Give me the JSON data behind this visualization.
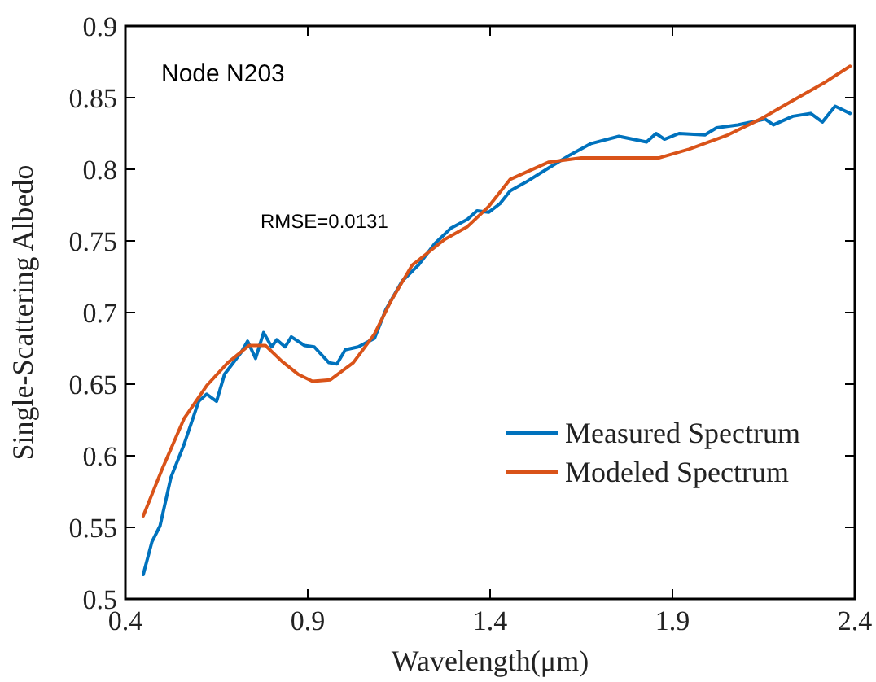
{
  "chart_data": {
    "type": "line",
    "xlabel": "Wavelength(μm)",
    "ylabel": "Single-Scattering Albedo",
    "annotations": [
      "Node N203",
      "RMSE=0.0131"
    ],
    "xlim": [
      0.4,
      2.4
    ],
    "xticks": [
      0.4,
      0.9,
      1.4,
      1.9,
      2.4
    ],
    "ylim": [
      0.5,
      0.9
    ],
    "yticks": [
      0.5,
      0.55,
      0.6,
      0.65,
      0.7,
      0.75,
      0.8,
      0.85,
      0.9
    ],
    "grid": false,
    "legend": "bottom right",
    "marker": "none",
    "line_style": "solid",
    "series": [
      {
        "name": "Measured Spectrum",
        "color": "#0072bd",
        "x": [
          0.449,
          0.473,
          0.495,
          0.525,
          0.561,
          0.601,
          0.623,
          0.65,
          0.672,
          0.717,
          0.735,
          0.757,
          0.779,
          0.801,
          0.815,
          0.838,
          0.855,
          0.891,
          0.918,
          0.958,
          0.98,
          1.003,
          1.038,
          1.083,
          1.114,
          1.159,
          1.203,
          1.248,
          1.293,
          1.338,
          1.364,
          1.396,
          1.427,
          1.455,
          1.498,
          1.561,
          1.619,
          1.677,
          1.753,
          1.829,
          1.855,
          1.878,
          1.918,
          1.989,
          2.021,
          2.079,
          2.154,
          2.177,
          2.23,
          2.279,
          2.311,
          2.346,
          2.387
        ],
        "values": [
          0.517,
          0.54,
          0.551,
          0.585,
          0.608,
          0.638,
          0.643,
          0.638,
          0.657,
          0.672,
          0.68,
          0.668,
          0.686,
          0.676,
          0.681,
          0.676,
          0.683,
          0.677,
          0.676,
          0.665,
          0.664,
          0.674,
          0.676,
          0.682,
          0.702,
          0.722,
          0.733,
          0.748,
          0.759,
          0.765,
          0.771,
          0.77,
          0.776,
          0.785,
          0.791,
          0.801,
          0.81,
          0.818,
          0.823,
          0.819,
          0.825,
          0.821,
          0.825,
          0.824,
          0.829,
          0.831,
          0.835,
          0.831,
          0.837,
          0.839,
          0.833,
          0.844,
          0.839
        ]
      },
      {
        "name": "Modeled Spectrum",
        "color": "#d95319",
        "x": [
          0.449,
          0.503,
          0.561,
          0.623,
          0.681,
          0.739,
          0.784,
          0.829,
          0.873,
          0.913,
          0.962,
          1.025,
          1.083,
          1.128,
          1.186,
          1.275,
          1.338,
          1.396,
          1.455,
          1.561,
          1.65,
          1.753,
          1.864,
          1.945,
          2.052,
          2.141,
          2.23,
          2.32,
          2.387
        ],
        "values": [
          0.558,
          0.592,
          0.626,
          0.649,
          0.665,
          0.677,
          0.677,
          0.666,
          0.657,
          0.652,
          0.653,
          0.665,
          0.685,
          0.708,
          0.733,
          0.751,
          0.76,
          0.774,
          0.793,
          0.805,
          0.808,
          0.808,
          0.808,
          0.814,
          0.824,
          0.835,
          0.848,
          0.861,
          0.872
        ]
      }
    ]
  }
}
